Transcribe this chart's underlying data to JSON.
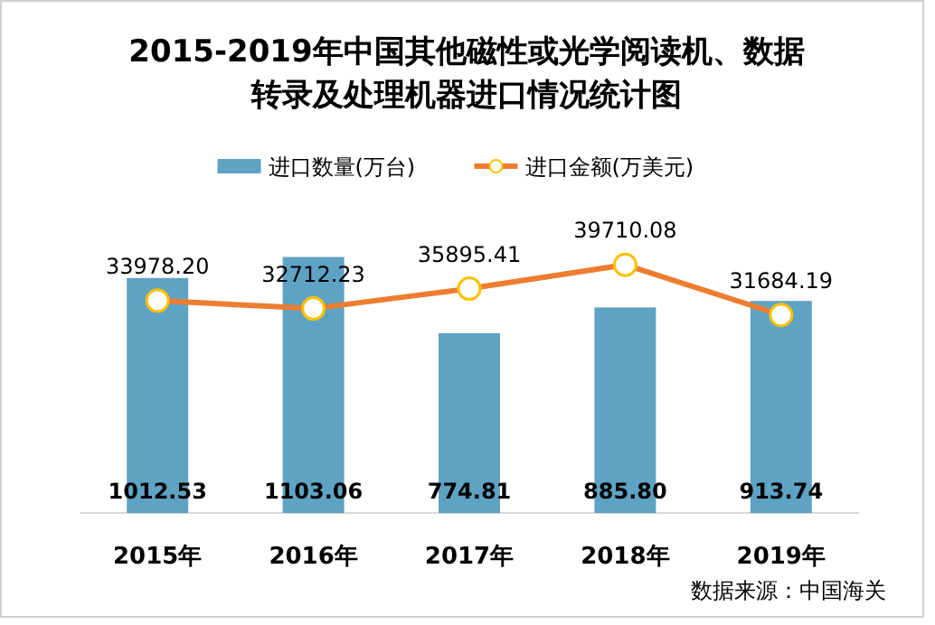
{
  "chart_data": {
    "type": "bar",
    "title": "2015-2019年中国其他磁性或光学阅读机、数据转录及处理机器进口情况统计图",
    "categories": [
      "2015年",
      "2016年",
      "2017年",
      "2018年",
      "2019年"
    ],
    "series": [
      {
        "name": "进口数量(万台)",
        "color": "#5fa3c4",
        "values": [
          1012.53,
          1103.06,
          774.81,
          885.8,
          913.74
        ],
        "value_labels": [
          "1012.53",
          "1103.06",
          "774.81",
          "885.80",
          "913.74"
        ]
      },
      {
        "name": "进口金额(万美元)",
        "type": "line",
        "axis": "y2",
        "color": "#ed7d31",
        "marker": "circle",
        "values": [
          33978.2,
          32712.23,
          35895.41,
          39710.08,
          31684.19
        ],
        "value_labels": [
          "33978.20",
          "32712.23",
          "35895.41",
          "39710.08",
          "31684.19"
        ]
      }
    ],
    "tick_labels": "x",
    "legend": "top",
    "annotations": [
      "数据来源：中国海关"
    ]
  }
}
